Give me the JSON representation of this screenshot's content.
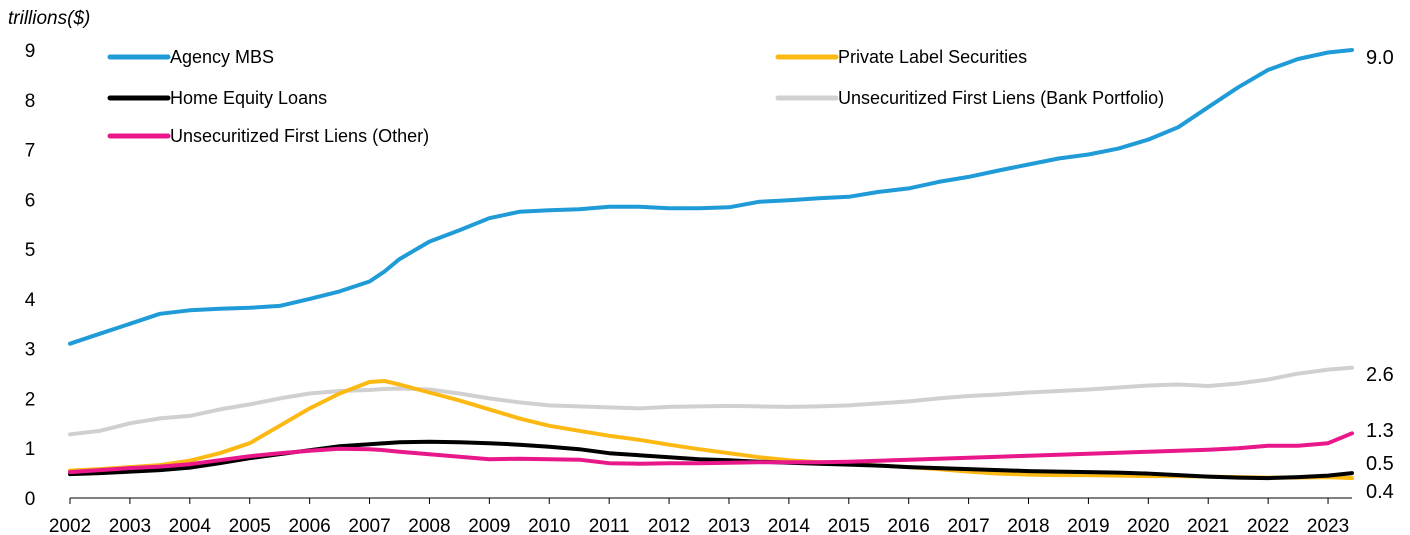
{
  "chart_data": {
    "type": "line",
    "title": "",
    "xlabel": "",
    "ylabel": "trillions($)",
    "ylim": [
      0,
      9
    ],
    "xlim": [
      2002.0,
      2023.4
    ],
    "yticks": [
      "0",
      "1",
      "2",
      "3",
      "4",
      "5",
      "6",
      "7",
      "8",
      "9"
    ],
    "xticks": [
      "2002",
      "2003",
      "2004",
      "2005",
      "2006",
      "2007",
      "2008",
      "2009",
      "2010",
      "2011",
      "2012",
      "2013",
      "2014",
      "2015",
      "2016",
      "2017",
      "2018",
      "2019",
      "2020",
      "2021",
      "2022",
      "2023"
    ],
    "grid": false,
    "legend_position": "top",
    "x": [
      2002.0,
      2002.5,
      2003.0,
      2003.5,
      2004.0,
      2004.5,
      2005.0,
      2005.5,
      2006.0,
      2006.5,
      2007.0,
      2007.25,
      2007.5,
      2008.0,
      2008.5,
      2009.0,
      2009.5,
      2010.0,
      2010.5,
      2011.0,
      2011.5,
      2012.0,
      2012.5,
      2013.0,
      2013.5,
      2014.0,
      2014.5,
      2015.0,
      2015.5,
      2016.0,
      2016.5,
      2017.0,
      2017.5,
      2018.0,
      2018.5,
      2019.0,
      2019.5,
      2020.0,
      2020.5,
      2021.0,
      2021.5,
      2022.0,
      2022.5,
      2023.0,
      2023.4
    ],
    "series": [
      {
        "name": "Agency MBS",
        "color": "#1f9bd7",
        "end_label": "9.0",
        "values": [
          3.1,
          3.3,
          3.5,
          3.7,
          3.77,
          3.8,
          3.82,
          3.86,
          4.0,
          4.15,
          4.35,
          4.55,
          4.8,
          5.15,
          5.38,
          5.62,
          5.75,
          5.78,
          5.8,
          5.85,
          5.85,
          5.82,
          5.82,
          5.84,
          5.95,
          5.98,
          6.02,
          6.05,
          6.15,
          6.22,
          6.35,
          6.45,
          6.58,
          6.7,
          6.82,
          6.9,
          7.02,
          7.2,
          7.45,
          7.85,
          8.25,
          8.6,
          8.82,
          8.95,
          9.0
        ]
      },
      {
        "name": "Private Label Securities",
        "color": "#fdb913",
        "end_label": "0.4",
        "values": [
          0.55,
          0.58,
          0.62,
          0.66,
          0.75,
          0.9,
          1.1,
          1.45,
          1.8,
          2.1,
          2.33,
          2.35,
          2.28,
          2.12,
          1.96,
          1.78,
          1.6,
          1.45,
          1.35,
          1.25,
          1.17,
          1.07,
          0.98,
          0.9,
          0.82,
          0.76,
          0.72,
          0.69,
          0.65,
          0.62,
          0.58,
          0.53,
          0.49,
          0.47,
          0.46,
          0.46,
          0.45,
          0.44,
          0.44,
          0.43,
          0.42,
          0.41,
          0.41,
          0.42,
          0.4
        ]
      },
      {
        "name": "Home Equity Loans",
        "color": "#000000",
        "end_label": "0.5",
        "values": [
          0.48,
          0.5,
          0.53,
          0.56,
          0.61,
          0.7,
          0.8,
          0.88,
          0.96,
          1.04,
          1.08,
          1.1,
          1.12,
          1.13,
          1.12,
          1.1,
          1.07,
          1.03,
          0.98,
          0.9,
          0.86,
          0.82,
          0.78,
          0.76,
          0.73,
          0.71,
          0.69,
          0.67,
          0.65,
          0.62,
          0.6,
          0.58,
          0.56,
          0.54,
          0.53,
          0.52,
          0.51,
          0.49,
          0.46,
          0.43,
          0.41,
          0.4,
          0.42,
          0.45,
          0.5
        ]
      },
      {
        "name": "Unsecuritized First Liens (Bank Portfolio)",
        "color": "#d0d0d0",
        "end_label": "2.6",
        "values": [
          1.28,
          1.35,
          1.5,
          1.6,
          1.65,
          1.78,
          1.88,
          2.0,
          2.1,
          2.15,
          2.17,
          2.19,
          2.2,
          2.18,
          2.1,
          2.0,
          1.92,
          1.86,
          1.84,
          1.82,
          1.8,
          1.83,
          1.84,
          1.85,
          1.84,
          1.83,
          1.84,
          1.86,
          1.9,
          1.94,
          2.0,
          2.05,
          2.08,
          2.12,
          2.15,
          2.18,
          2.22,
          2.26,
          2.28,
          2.25,
          2.3,
          2.38,
          2.5,
          2.58,
          2.62
        ]
      },
      {
        "name": "Unsecuritized First Liens (Other)",
        "color": "#e8178a",
        "end_label": "1.3",
        "values": [
          0.52,
          0.56,
          0.6,
          0.63,
          0.68,
          0.76,
          0.84,
          0.9,
          0.95,
          0.99,
          0.98,
          0.96,
          0.93,
          0.88,
          0.83,
          0.78,
          0.79,
          0.78,
          0.77,
          0.7,
          0.69,
          0.7,
          0.7,
          0.71,
          0.72,
          0.72,
          0.72,
          0.73,
          0.75,
          0.77,
          0.79,
          0.81,
          0.83,
          0.85,
          0.87,
          0.89,
          0.91,
          0.93,
          0.95,
          0.97,
          1.0,
          1.05,
          1.05,
          1.1,
          1.3
        ]
      }
    ]
  }
}
